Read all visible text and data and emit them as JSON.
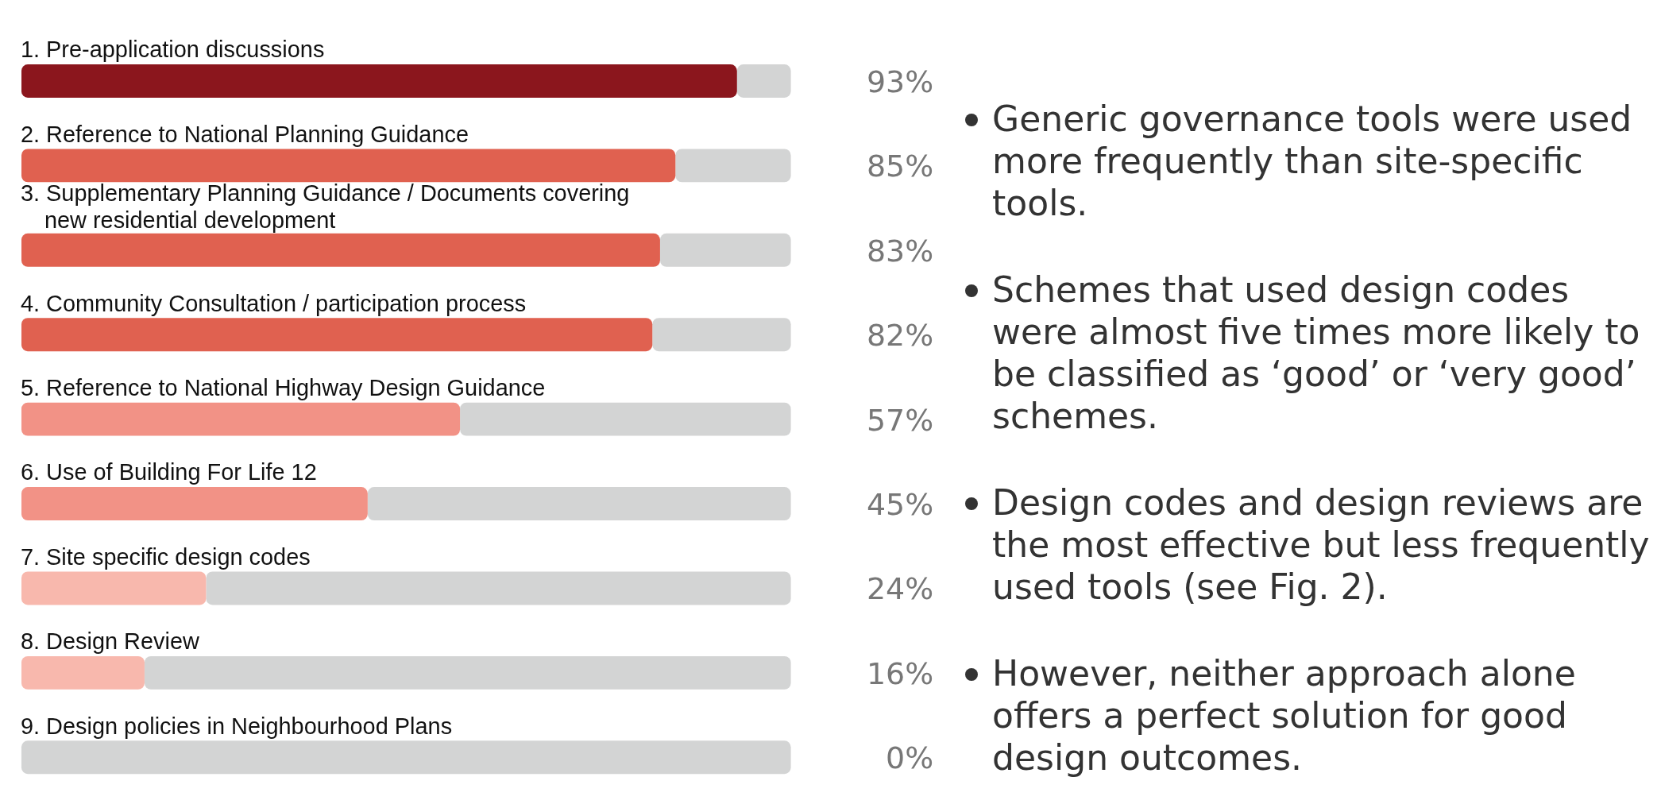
{
  "chart_data": {
    "type": "bar",
    "orientation": "horizontal",
    "categories": [
      "1. Pre-application discussions",
      "2. Reference to National Planning Guidance",
      "3. Supplementary Planning Guidance / Documents covering new residential development",
      "4. Community Consultation / participation process",
      "5. Reference to National Highway Design Guidance",
      "6. Use of Building For Life 12",
      "7. Site specific design codes",
      "8. Design Review",
      "9. Design policies in Neighbourhood Plans"
    ],
    "values": [
      93,
      85,
      83,
      82,
      57,
      45,
      24,
      16,
      0
    ],
    "value_labels": [
      "93%",
      "85%",
      "83%",
      "82%",
      "57%",
      "45%",
      "24%",
      "16%",
      "0%"
    ],
    "colors": [
      "#8b161d",
      "#e06150",
      "#e06150",
      "#e06150",
      "#f29286",
      "#f29286",
      "#f8b8ad",
      "#f8b8ad",
      "#f8b8ad"
    ],
    "xlim": [
      0,
      100
    ],
    "tick_labels": "y",
    "grid": false,
    "legend": false,
    "annotations": [
      "Generic governance tools were used more frequently than site-specific tools.",
      "Schemes that used design codes were almost five times more likely to be classified as ‘good’ or ‘very good’ schemes.",
      "Design codes and design reviews are the most effective but less frequently used tools (see Fig. 2).",
      "However, neither approach alone offers a perfect solution for good design outcomes."
    ]
  }
}
